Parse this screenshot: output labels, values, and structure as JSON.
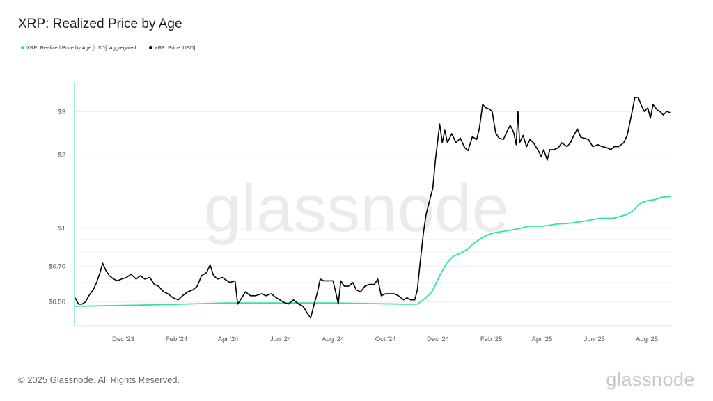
{
  "header": {
    "title": "XRP: Realized Price by Age"
  },
  "footer": {
    "copyright": "© 2025 Glassnode. All Rights Reserved.",
    "brand": "glassnode"
  },
  "watermark": "glassnode",
  "chart_data": {
    "type": "line",
    "title": "XRP: Realized Price by Age",
    "y_scale": "log",
    "ylim": [
      0.4,
      3.7
    ],
    "grid": true,
    "legend_placement": "top-left",
    "y_ticks": [
      {
        "v": 3,
        "label": "$3"
      },
      {
        "v": 2,
        "label": "$2"
      },
      {
        "v": 1,
        "label": "$1"
      },
      {
        "v": 0.7,
        "label": "$0.70"
      },
      {
        "v": 0.5,
        "label": "$0.50"
      }
    ],
    "y_grid": [
      3,
      2,
      1,
      0.9,
      0.8,
      0.7,
      0.6,
      0.5
    ],
    "x_range": [
      "2023-10-06",
      "2025-08-29"
    ],
    "x_ticks": [
      {
        "date": "2023-12-01",
        "label": "Dec '23"
      },
      {
        "date": "2024-02-01",
        "label": "Feb '24"
      },
      {
        "date": "2024-04-01",
        "label": "Apr '24"
      },
      {
        "date": "2024-06-01",
        "label": "Jun '24"
      },
      {
        "date": "2024-08-01",
        "label": "Aug '24"
      },
      {
        "date": "2024-10-01",
        "label": "Oct '24"
      },
      {
        "date": "2024-12-01",
        "label": "Dec '24"
      },
      {
        "date": "2025-02-01",
        "label": "Feb '25"
      },
      {
        "date": "2025-04-01",
        "label": "Apr '25"
      },
      {
        "date": "2025-06-01",
        "label": "Jun '25"
      },
      {
        "date": "2025-08-01",
        "label": "Aug '25"
      }
    ],
    "series": [
      {
        "name": "XRP: Realized Price by Age [USD]: Aggregated",
        "color": "#2ee59d",
        "points": [
          [
            "2023-10-06",
            0.48
          ],
          [
            "2023-12-19",
            0.485
          ],
          [
            "2024-04-01",
            0.495
          ],
          [
            "2024-08-01",
            0.495
          ],
          [
            "2024-10-22",
            0.49
          ],
          [
            "2024-11-07",
            0.49
          ],
          [
            "2024-11-17",
            0.52
          ],
          [
            "2024-11-24",
            0.55
          ],
          [
            "2024-12-03",
            0.64
          ],
          [
            "2024-12-11",
            0.72
          ],
          [
            "2024-12-19",
            0.77
          ],
          [
            "2024-12-27",
            0.79
          ],
          [
            "2025-01-04",
            0.82
          ],
          [
            "2025-01-12",
            0.87
          ],
          [
            "2025-01-20",
            0.91
          ],
          [
            "2025-01-28",
            0.94
          ],
          [
            "2025-02-05",
            0.96
          ],
          [
            "2025-02-13",
            0.97
          ],
          [
            "2025-03-01",
            0.99
          ],
          [
            "2025-03-17",
            1.02
          ],
          [
            "2025-04-02",
            1.02
          ],
          [
            "2025-04-18",
            1.04
          ],
          [
            "2025-05-04",
            1.05
          ],
          [
            "2025-05-20",
            1.07
          ],
          [
            "2025-06-07",
            1.1
          ],
          [
            "2025-06-23",
            1.1
          ],
          [
            "2025-07-09",
            1.14
          ],
          [
            "2025-07-17",
            1.19
          ],
          [
            "2025-07-25",
            1.27
          ],
          [
            "2025-08-02",
            1.3
          ],
          [
            "2025-08-10",
            1.31
          ],
          [
            "2025-08-18",
            1.34
          ],
          [
            "2025-08-29",
            1.35
          ]
        ]
      },
      {
        "name": "XRP: Price [USD]",
        "color": "#000000",
        "points": [
          [
            "2023-10-06",
            0.52
          ],
          [
            "2023-10-10",
            0.49
          ],
          [
            "2023-10-14",
            0.49
          ],
          [
            "2023-10-18",
            0.5
          ],
          [
            "2023-10-22",
            0.53
          ],
          [
            "2023-10-27",
            0.56
          ],
          [
            "2023-10-31",
            0.6
          ],
          [
            "2023-11-04",
            0.66
          ],
          [
            "2023-11-07",
            0.72
          ],
          [
            "2023-11-11",
            0.67
          ],
          [
            "2023-11-15",
            0.64
          ],
          [
            "2023-11-20",
            0.62
          ],
          [
            "2023-11-24",
            0.61
          ],
          [
            "2023-11-29",
            0.62
          ],
          [
            "2023-12-05",
            0.63
          ],
          [
            "2023-12-10",
            0.65
          ],
          [
            "2023-12-16",
            0.62
          ],
          [
            "2023-12-21",
            0.64
          ],
          [
            "2023-12-26",
            0.62
          ],
          [
            "2024-01-01",
            0.63
          ],
          [
            "2024-01-06",
            0.59
          ],
          [
            "2024-01-11",
            0.58
          ],
          [
            "2024-01-17",
            0.55
          ],
          [
            "2024-01-22",
            0.54
          ],
          [
            "2024-01-28",
            0.52
          ],
          [
            "2024-02-03",
            0.51
          ],
          [
            "2024-02-08",
            0.53
          ],
          [
            "2024-02-14",
            0.55
          ],
          [
            "2024-02-20",
            0.56
          ],
          [
            "2024-02-25",
            0.58
          ],
          [
            "2024-03-01",
            0.64
          ],
          [
            "2024-03-07",
            0.66
          ],
          [
            "2024-03-11",
            0.71
          ],
          [
            "2024-03-15",
            0.64
          ],
          [
            "2024-03-20",
            0.62
          ],
          [
            "2024-03-25",
            0.63
          ],
          [
            "2024-03-31",
            0.61
          ],
          [
            "2024-04-03",
            0.6
          ],
          [
            "2024-04-09",
            0.61
          ],
          [
            "2024-04-12",
            0.49
          ],
          [
            "2024-04-17",
            0.52
          ],
          [
            "2024-04-21",
            0.55
          ],
          [
            "2024-04-27",
            0.53
          ],
          [
            "2024-05-03",
            0.53
          ],
          [
            "2024-05-10",
            0.54
          ],
          [
            "2024-05-15",
            0.53
          ],
          [
            "2024-05-21",
            0.54
          ],
          [
            "2024-05-27",
            0.52
          ],
          [
            "2024-06-04",
            0.5
          ],
          [
            "2024-06-10",
            0.49
          ],
          [
            "2024-06-16",
            0.51
          ],
          [
            "2024-06-22",
            0.49
          ],
          [
            "2024-06-27",
            0.48
          ],
          [
            "2024-07-02",
            0.45
          ],
          [
            "2024-07-06",
            0.43
          ],
          [
            "2024-07-10",
            0.49
          ],
          [
            "2024-07-14",
            0.55
          ],
          [
            "2024-07-17",
            0.62
          ],
          [
            "2024-07-21",
            0.61
          ],
          [
            "2024-07-26",
            0.61
          ],
          [
            "2024-08-01",
            0.61
          ],
          [
            "2024-08-05",
            0.53
          ],
          [
            "2024-08-07",
            0.49
          ],
          [
            "2024-08-10",
            0.61
          ],
          [
            "2024-08-14",
            0.58
          ],
          [
            "2024-08-19",
            0.58
          ],
          [
            "2024-08-24",
            0.6
          ],
          [
            "2024-08-28",
            0.56
          ],
          [
            "2024-09-02",
            0.55
          ],
          [
            "2024-09-07",
            0.58
          ],
          [
            "2024-09-12",
            0.59
          ],
          [
            "2024-09-18",
            0.59
          ],
          [
            "2024-09-22",
            0.62
          ],
          [
            "2024-09-26",
            0.53
          ],
          [
            "2024-10-01",
            0.54
          ],
          [
            "2024-10-06",
            0.54
          ],
          [
            "2024-10-11",
            0.54
          ],
          [
            "2024-10-16",
            0.53
          ],
          [
            "2024-10-22",
            0.51
          ],
          [
            "2024-10-26",
            0.52
          ],
          [
            "2024-10-30",
            0.51
          ],
          [
            "2024-11-04",
            0.51
          ],
          [
            "2024-11-07",
            0.56
          ],
          [
            "2024-11-10",
            0.71
          ],
          [
            "2024-11-14",
            0.95
          ],
          [
            "2024-11-17",
            1.13
          ],
          [
            "2024-11-22",
            1.33
          ],
          [
            "2024-11-25",
            1.46
          ],
          [
            "2024-11-28",
            1.9
          ],
          [
            "2024-12-03",
            2.67
          ],
          [
            "2024-12-06",
            2.24
          ],
          [
            "2024-12-09",
            2.52
          ],
          [
            "2024-12-12",
            2.24
          ],
          [
            "2024-12-17",
            2.44
          ],
          [
            "2024-12-22",
            2.24
          ],
          [
            "2024-12-27",
            2.34
          ],
          [
            "2025-01-01",
            2.14
          ],
          [
            "2025-01-05",
            2.08
          ],
          [
            "2025-01-10",
            2.37
          ],
          [
            "2025-01-15",
            2.31
          ],
          [
            "2025-01-18",
            2.55
          ],
          [
            "2025-01-22",
            3.21
          ],
          [
            "2025-01-26",
            3.11
          ],
          [
            "2025-01-30",
            3.07
          ],
          [
            "2025-02-02",
            3.01
          ],
          [
            "2025-02-06",
            2.46
          ],
          [
            "2025-02-10",
            2.34
          ],
          [
            "2025-02-15",
            2.31
          ],
          [
            "2025-02-19",
            2.48
          ],
          [
            "2025-02-23",
            2.64
          ],
          [
            "2025-02-27",
            2.47
          ],
          [
            "2025-03-02",
            2.2
          ],
          [
            "2025-03-04",
            3.01
          ],
          [
            "2025-03-06",
            2.24
          ],
          [
            "2025-03-10",
            2.4
          ],
          [
            "2025-03-14",
            2.16
          ],
          [
            "2025-03-18",
            2.31
          ],
          [
            "2025-03-22",
            2.24
          ],
          [
            "2025-03-27",
            2.1
          ],
          [
            "2025-03-31",
            1.97
          ],
          [
            "2025-04-03",
            2.1
          ],
          [
            "2025-04-07",
            1.9
          ],
          [
            "2025-04-10",
            2.1
          ],
          [
            "2025-04-15",
            2.1
          ],
          [
            "2025-04-20",
            2.14
          ],
          [
            "2025-04-24",
            2.24
          ],
          [
            "2025-04-30",
            2.16
          ],
          [
            "2025-05-04",
            2.24
          ],
          [
            "2025-05-08",
            2.4
          ],
          [
            "2025-05-12",
            2.55
          ],
          [
            "2025-05-16",
            2.36
          ],
          [
            "2025-05-20",
            2.34
          ],
          [
            "2025-05-25",
            2.31
          ],
          [
            "2025-05-30",
            2.16
          ],
          [
            "2025-06-05",
            2.2
          ],
          [
            "2025-06-10",
            2.16
          ],
          [
            "2025-06-15",
            2.14
          ],
          [
            "2025-06-20",
            2.1
          ],
          [
            "2025-06-24",
            2.16
          ],
          [
            "2025-06-29",
            2.16
          ],
          [
            "2025-07-05",
            2.24
          ],
          [
            "2025-07-09",
            2.4
          ],
          [
            "2025-07-14",
            2.91
          ],
          [
            "2025-07-18",
            3.43
          ],
          [
            "2025-07-22",
            3.43
          ],
          [
            "2025-07-25",
            3.21
          ],
          [
            "2025-07-29",
            3.01
          ],
          [
            "2025-08-02",
            3.11
          ],
          [
            "2025-08-05",
            2.82
          ],
          [
            "2025-08-08",
            3.21
          ],
          [
            "2025-08-13",
            3.05
          ],
          [
            "2025-08-16",
            3.01
          ],
          [
            "2025-08-20",
            2.91
          ],
          [
            "2025-08-24",
            3.01
          ],
          [
            "2025-08-28",
            2.97
          ]
        ]
      }
    ]
  }
}
